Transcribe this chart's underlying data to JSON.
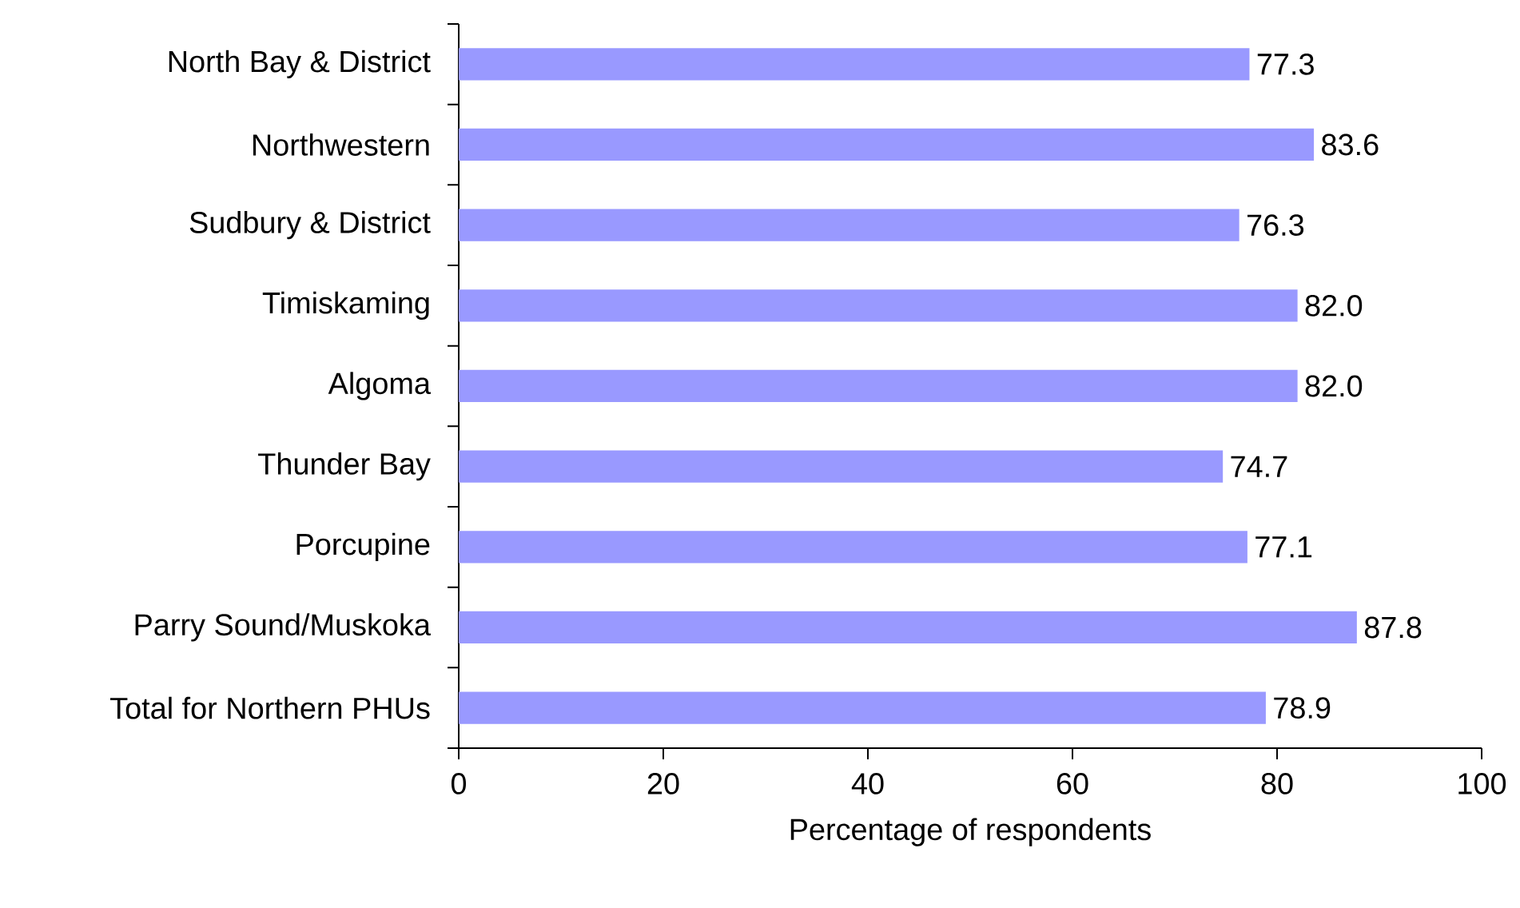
{
  "chart_data": {
    "type": "bar",
    "orientation": "horizontal",
    "xlabel": "Percentage of respondents",
    "categories": [
      "North Bay & District",
      "Northwestern",
      "Sudbury & District",
      "Timiskaming",
      "Algoma",
      "Thunder Bay",
      "Porcupine",
      "Parry Sound/Muskoka",
      "Total for Northern PHUs"
    ],
    "values": [
      77.3,
      83.6,
      76.3,
      82.0,
      82.0,
      74.7,
      77.1,
      87.8,
      78.9
    ],
    "value_labels": [
      "77.3",
      "83.6",
      "76.3",
      "82.0",
      "82.0",
      "74.7",
      "77.1",
      "87.8",
      "78.9"
    ],
    "color": "#9999ff",
    "xlim": [
      0,
      100
    ],
    "xticks": [
      0,
      20,
      40,
      60,
      80,
      100
    ]
  }
}
